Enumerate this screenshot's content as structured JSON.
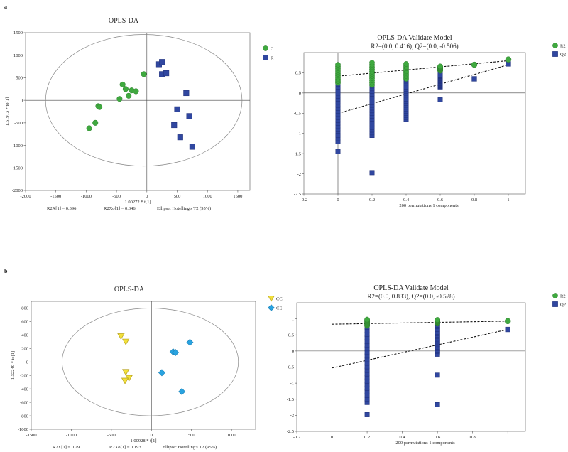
{
  "panels": {
    "a": "a",
    "b": "b"
  },
  "chart_data": [
    {
      "id": "a-score",
      "type": "scatter",
      "title": "OPLS-DA",
      "xlabel": "1.00272 * t[1]",
      "ylabel": "1.51913 * to[1]",
      "xlim": [
        -2000,
        1700
      ],
      "ylim": [
        -2000,
        1500
      ],
      "xticks": [
        -2000,
        -1500,
        -1000,
        -500,
        0,
        500,
        1000,
        1500
      ],
      "yticks": [
        -2000,
        -1500,
        -1000,
        -500,
        0,
        500,
        1000,
        1500
      ],
      "footer": [
        "R2X[1] = 0.396",
        "R2Xo[1] = 0.346",
        "Ellipse: Hotelling's T2 (95%)"
      ],
      "ellipse": {
        "cx": -50,
        "cy": 0,
        "rx": 1620,
        "ry": 1460
      },
      "series": [
        {
          "name": "C",
          "marker": "circle",
          "color": "#3fa93f",
          "points": [
            [
              -950,
              -620
            ],
            [
              -850,
              -500
            ],
            [
              -800,
              -130
            ],
            [
              -780,
              -150
            ],
            [
              -450,
              30
            ],
            [
              -400,
              350
            ],
            [
              -350,
              250
            ],
            [
              -300,
              100
            ],
            [
              -250,
              220
            ],
            [
              -180,
              200
            ],
            [
              -50,
              580
            ]
          ]
        },
        {
          "name": "R",
          "marker": "square",
          "color": "#3047a0",
          "points": [
            [
              200,
              800
            ],
            [
              250,
              850
            ],
            [
              250,
              580
            ],
            [
              320,
              600
            ],
            [
              450,
              -550
            ],
            [
              500,
              -200
            ],
            [
              550,
              -820
            ],
            [
              650,
              160
            ],
            [
              700,
              -350
            ],
            [
              750,
              -1030
            ]
          ]
        }
      ]
    },
    {
      "id": "a-validate",
      "type": "scatter",
      "title": "OPLS-DA Validate Model",
      "subtitle": "R2=(0.0, 0.416), Q2=(0.0, -0.506)",
      "xlabel": "200 permutations 1 components",
      "xlim": [
        -0.2,
        1.1
      ],
      "ylim": [
        -2.5,
        1.0
      ],
      "xticks": [
        -0.2,
        0,
        0.2,
        0.4,
        0.6,
        0.8,
        1
      ],
      "yticks": [
        -2.5,
        -2,
        -1.5,
        -1,
        -0.5,
        0,
        0.5
      ],
      "r2_line": [
        [
          0,
          0.416
        ],
        [
          1,
          0.8
        ]
      ],
      "q2_line": [
        [
          0,
          -0.506
        ],
        [
          1,
          0.7
        ]
      ],
      "columns": [
        {
          "x": 0,
          "r2_range": [
            0.25,
            0.7
          ],
          "q2_range": [
            -1.2,
            0.45
          ],
          "q2_extra": [
            -1.45,
            -1.05
          ]
        },
        {
          "x": 0.2,
          "r2_range": [
            0.2,
            0.75
          ],
          "q2_range": [
            -1.05,
            0.45
          ],
          "q2_extra": [
            -1.97
          ]
        },
        {
          "x": 0.4,
          "r2_range": [
            0.35,
            0.72
          ],
          "q2_range": [
            -0.65,
            0.45
          ],
          "q2_extra": []
        },
        {
          "x": 0.6,
          "r2_range": [
            0.55,
            0.66
          ],
          "q2_range": [
            0.15,
            0.45
          ],
          "q2_extra": [
            -0.17
          ]
        }
      ],
      "r2_points": [
        [
          0.8,
          0.7
        ],
        [
          1,
          0.83
        ]
      ],
      "q2_points": [
        [
          0.8,
          0.35
        ],
        [
          1,
          0.72
        ]
      ],
      "legend": [
        {
          "name": "R2",
          "marker": "circle",
          "color": "#3fa93f"
        },
        {
          "name": "Q2",
          "marker": "square",
          "color": "#3047a0"
        }
      ]
    },
    {
      "id": "b-score",
      "type": "scatter",
      "title": "OPLS-DA",
      "xlabel": "1.00928 * t[1]",
      "ylabel": "1.32249 * to[1]",
      "xlim": [
        -1500,
        1300
      ],
      "ylim": [
        -1000,
        900
      ],
      "xticks": [
        -1500,
        -1000,
        -500,
        0,
        500,
        1000
      ],
      "yticks": [
        -1000,
        -800,
        -600,
        -400,
        -200,
        0,
        200,
        400,
        600,
        800
      ],
      "footer": [
        "R2X[1] = 0.29",
        "R2Xo[1] = 0.193",
        "Ellipse: Hotelling's T2 (95%)"
      ],
      "ellipse": {
        "cx": -15,
        "cy": 0,
        "rx": 1100,
        "ry": 800
      },
      "series": [
        {
          "name": "CC",
          "marker": "triangle-down",
          "color": "#f2e03a",
          "points": [
            [
              -380,
              380
            ],
            [
              -320,
              300
            ],
            [
              -320,
              -150
            ],
            [
              -280,
              -240
            ],
            [
              -330,
              -280
            ]
          ]
        },
        {
          "name": "CE",
          "marker": "diamond",
          "color": "#29a3e0",
          "points": [
            [
              130,
              -160
            ],
            [
              270,
              150
            ],
            [
              300,
              140
            ],
            [
              380,
              -440
            ],
            [
              480,
              290
            ]
          ]
        }
      ]
    },
    {
      "id": "b-validate",
      "type": "scatter",
      "title": "OPLS-DA Validate Model",
      "subtitle": "R2=(0.0, 0.833), Q2=(0.0, -0.528)",
      "xlabel": "200 permutations 1 components",
      "xlim": [
        -0.2,
        1.1
      ],
      "ylim": [
        -2.5,
        1.5
      ],
      "xticks": [
        -0.2,
        0,
        0.2,
        0.4,
        0.6,
        0.8,
        1
      ],
      "yticks": [
        -2.5,
        -2,
        -1.5,
        -1,
        -0.5,
        0,
        0.5,
        1
      ],
      "r2_line": [
        [
          0,
          0.833
        ],
        [
          1,
          0.93
        ]
      ],
      "q2_line": [
        [
          0,
          -0.528
        ],
        [
          1,
          0.67
        ]
      ],
      "columns": [
        {
          "x": 0.2,
          "r2_range": [
            0.78,
            0.98
          ],
          "q2_range": [
            -1.6,
            0.85
          ],
          "q2_extra": [
            -1.98
          ]
        },
        {
          "x": 0.6,
          "r2_range": [
            0.85,
            0.97
          ],
          "q2_range": [
            -0.1,
            0.85
          ],
          "q2_extra": [
            -0.75,
            -1.67
          ]
        }
      ],
      "r2_points": [
        [
          1,
          0.93
        ]
      ],
      "q2_points": [
        [
          1,
          0.67
        ]
      ],
      "legend": [
        {
          "name": "R2",
          "marker": "circle",
          "color": "#3fa93f"
        },
        {
          "name": "Q2",
          "marker": "square",
          "color": "#3047a0"
        }
      ]
    }
  ]
}
